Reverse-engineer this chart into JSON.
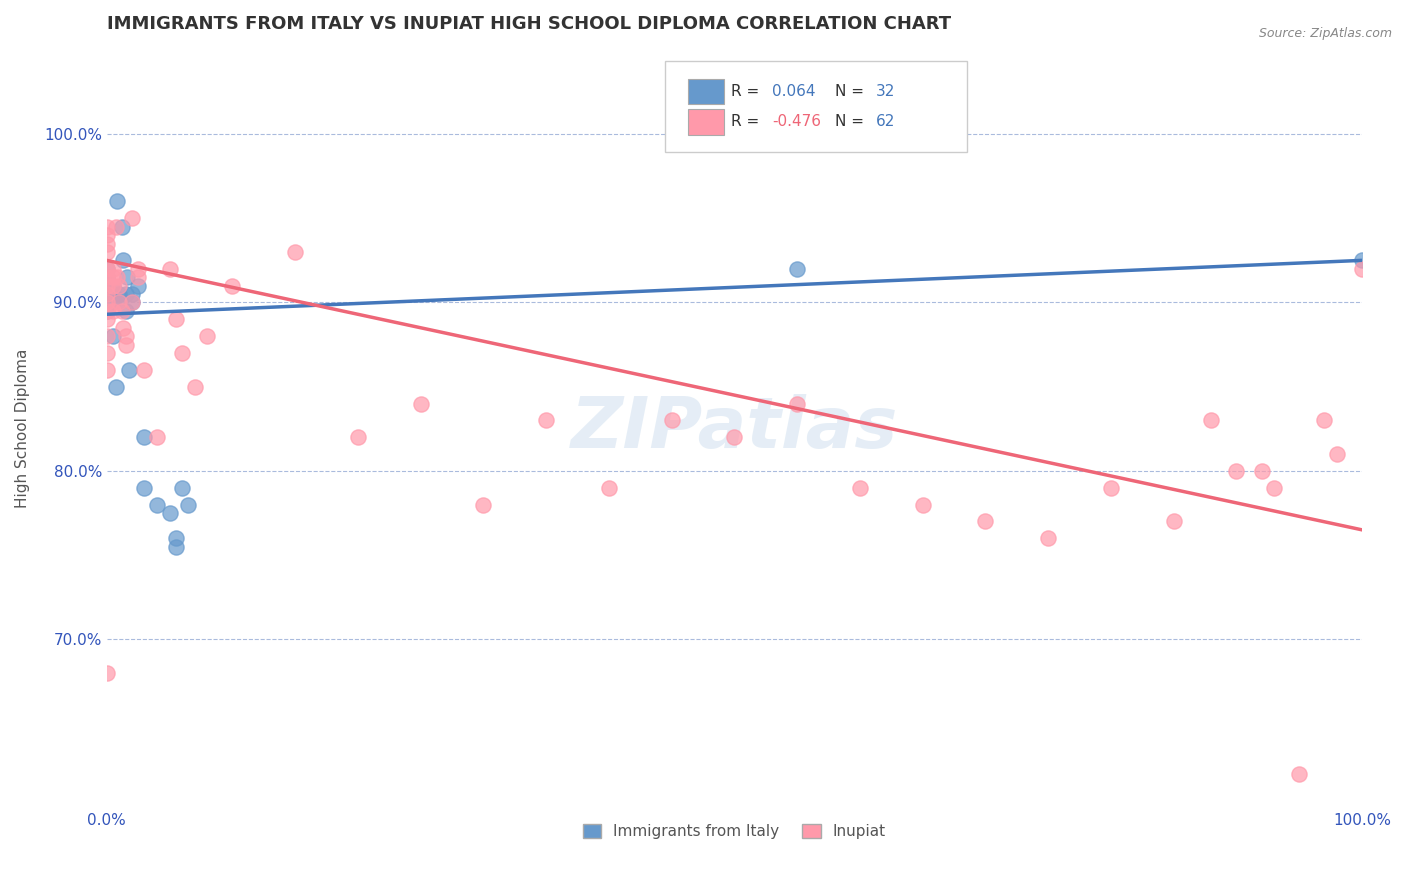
{
  "title": "IMMIGRANTS FROM ITALY VS INUPIAT HIGH SCHOOL DIPLOMA CORRELATION CHART",
  "source": "Source: ZipAtlas.com",
  "xlabel": "",
  "ylabel": "High School Diploma",
  "xlim": [
    0.0,
    1.0
  ],
  "ylim": [
    0.6,
    1.05
  ],
  "ytick_labels": [
    "70.0%",
    "80.0%",
    "90.0%",
    "100.0%"
  ],
  "ytick_values": [
    0.7,
    0.8,
    0.9,
    1.0
  ],
  "xtick_labels": [
    "0.0%",
    "100.0%"
  ],
  "xtick_values": [
    0.0,
    1.0
  ],
  "legend_r_blue": "R =  0.064",
  "legend_n_blue": "N = 32",
  "legend_r_pink": "R = -0.476",
  "legend_n_pink": "N = 62",
  "blue_color": "#6699cc",
  "pink_color": "#ff99aa",
  "line_blue": "#4477bb",
  "line_pink": "#ee6677",
  "watermark": "ZIPatlas",
  "blue_scatter_x": [
    0.0,
    0.0,
    0.0,
    0.0,
    0.0,
    0.005,
    0.005,
    0.005,
    0.005,
    0.007,
    0.008,
    0.01,
    0.01,
    0.012,
    0.013,
    0.015,
    0.015,
    0.016,
    0.018,
    0.02,
    0.02,
    0.025,
    0.03,
    0.03,
    0.04,
    0.05,
    0.055,
    0.055,
    0.06,
    0.065,
    0.55,
    1.0
  ],
  "blue_scatter_y": [
    0.895,
    0.905,
    0.91,
    0.915,
    0.92,
    0.88,
    0.9,
    0.905,
    0.91,
    0.85,
    0.96,
    0.905,
    0.9,
    0.945,
    0.925,
    0.895,
    0.905,
    0.915,
    0.86,
    0.9,
    0.905,
    0.91,
    0.79,
    0.82,
    0.78,
    0.775,
    0.755,
    0.76,
    0.79,
    0.78,
    0.92,
    0.925
  ],
  "pink_scatter_x": [
    0.0,
    0.0,
    0.0,
    0.0,
    0.0,
    0.0,
    0.0,
    0.0,
    0.0,
    0.0,
    0.0,
    0.0,
    0.0,
    0.0,
    0.0,
    0.005,
    0.005,
    0.005,
    0.005,
    0.007,
    0.008,
    0.01,
    0.01,
    0.012,
    0.013,
    0.015,
    0.015,
    0.02,
    0.02,
    0.025,
    0.025,
    0.03,
    0.04,
    0.05,
    0.055,
    0.06,
    0.07,
    0.08,
    0.1,
    0.15,
    0.2,
    0.25,
    0.3,
    0.35,
    0.4,
    0.45,
    0.5,
    0.55,
    0.6,
    0.65,
    0.7,
    0.75,
    0.8,
    0.85,
    0.88,
    0.9,
    0.92,
    0.93,
    0.95,
    0.97,
    0.98,
    1.0
  ],
  "pink_scatter_y": [
    0.89,
    0.895,
    0.9,
    0.905,
    0.91,
    0.915,
    0.92,
    0.93,
    0.935,
    0.94,
    0.945,
    0.88,
    0.87,
    0.86,
    0.68,
    0.895,
    0.91,
    0.915,
    0.92,
    0.945,
    0.915,
    0.91,
    0.9,
    0.895,
    0.885,
    0.88,
    0.875,
    0.95,
    0.9,
    0.92,
    0.915,
    0.86,
    0.82,
    0.92,
    0.89,
    0.87,
    0.85,
    0.88,
    0.91,
    0.93,
    0.82,
    0.84,
    0.78,
    0.83,
    0.79,
    0.83,
    0.82,
    0.84,
    0.79,
    0.78,
    0.77,
    0.76,
    0.79,
    0.77,
    0.83,
    0.8,
    0.8,
    0.79,
    0.62,
    0.83,
    0.81,
    0.92
  ],
  "blue_line_x": [
    0.0,
    1.0
  ],
  "blue_line_y": [
    0.893,
    0.925
  ],
  "pink_line_x": [
    0.0,
    1.0
  ],
  "pink_line_y": [
    0.925,
    0.765
  ],
  "background_color": "#ffffff",
  "title_color": "#333333",
  "axis_color": "#3355bb",
  "grid_color": "#aabbdd",
  "title_fontsize": 13,
  "label_fontsize": 11,
  "tick_fontsize": 11
}
